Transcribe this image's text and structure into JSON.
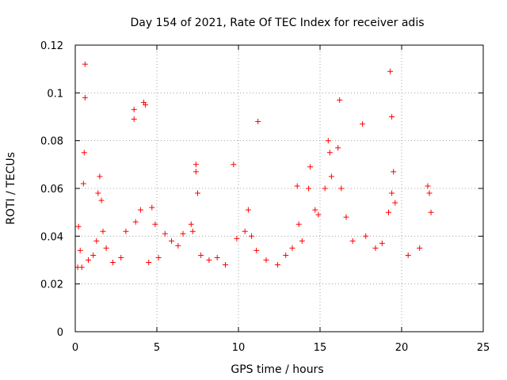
{
  "chart_data": {
    "type": "scatter",
    "title": "Day 154 of 2021, Rate Of TEC Index for receiver adis",
    "xlabel": "GPS time / hours",
    "ylabel": "ROTI / TECUs",
    "xlim": [
      0,
      25
    ],
    "ylim": [
      0,
      0.12
    ],
    "grid": true,
    "marker": "+",
    "xticks": [
      0,
      5,
      10,
      15,
      20,
      25
    ],
    "xtick_labels": [
      "0",
      "5",
      "10",
      "15",
      "20",
      "25"
    ],
    "yticks": [
      0,
      0.02,
      0.04,
      0.06,
      0.08,
      0.1,
      0.12
    ],
    "ytick_labels": [
      "0",
      "0.02",
      "0.04",
      "0.06",
      "0.08",
      "0.1",
      "0.12"
    ],
    "series": [
      {
        "name": "ROTI",
        "color": "#ff0000",
        "x": [
          0.6,
          0.6,
          0.55,
          0.5,
          0.2,
          0.15,
          0.3,
          0.4,
          0.8,
          1.4,
          1.5,
          1.6,
          1.7,
          1.3,
          1.1,
          1.9,
          2.3,
          2.8,
          3.1,
          3.6,
          3.6,
          3.7,
          4.2,
          4.3,
          4.0,
          4.7,
          4.9,
          5.1,
          4.5,
          5.5,
          5.9,
          6.3,
          6.6,
          7.1,
          7.4,
          7.4,
          7.5,
          7.2,
          7.7,
          8.2,
          8.7,
          9.2,
          9.7,
          9.9,
          10.4,
          10.6,
          10.8,
          11.2,
          11.1,
          11.7,
          12.4,
          12.9,
          13.3,
          13.6,
          13.7,
          13.9,
          14.3,
          14.4,
          14.7,
          14.9,
          15.3,
          15.5,
          15.6,
          15.7,
          16.1,
          16.2,
          16.3,
          16.6,
          17.0,
          17.6,
          17.8,
          18.4,
          18.8,
          19.3,
          19.4,
          19.5,
          19.6,
          19.4,
          19.2,
          20.4,
          21.1,
          21.6,
          21.7,
          21.8
        ],
        "y": [
          0.112,
          0.098,
          0.075,
          0.062,
          0.044,
          0.027,
          0.034,
          0.027,
          0.03,
          0.058,
          0.065,
          0.055,
          0.042,
          0.038,
          0.032,
          0.035,
          0.029,
          0.031,
          0.042,
          0.093,
          0.089,
          0.046,
          0.096,
          0.095,
          0.051,
          0.052,
          0.045,
          0.031,
          0.029,
          0.041,
          0.038,
          0.036,
          0.041,
          0.045,
          0.07,
          0.067,
          0.058,
          0.042,
          0.032,
          0.03,
          0.031,
          0.028,
          0.07,
          0.039,
          0.042,
          0.051,
          0.04,
          0.088,
          0.034,
          0.03,
          0.028,
          0.032,
          0.035,
          0.061,
          0.045,
          0.038,
          0.06,
          0.069,
          0.051,
          0.049,
          0.06,
          0.08,
          0.075,
          0.065,
          0.077,
          0.097,
          0.06,
          0.048,
          0.038,
          0.087,
          0.04,
          0.035,
          0.037,
          0.109,
          0.09,
          0.067,
          0.054,
          0.058,
          0.05,
          0.032,
          0.035,
          0.061,
          0.058,
          0.05
        ]
      }
    ]
  }
}
